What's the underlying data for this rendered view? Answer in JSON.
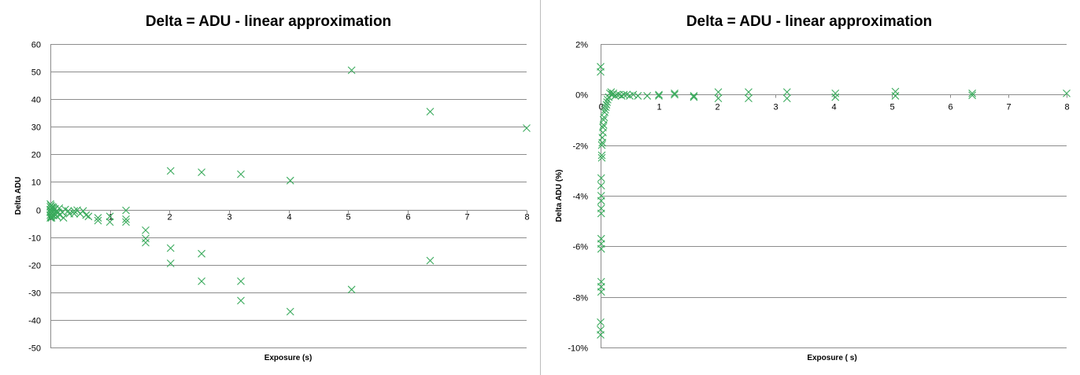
{
  "chart_data": [
    {
      "type": "scatter",
      "title": "Delta = ADU - linear approximation",
      "xlabel": "Exposure (s)",
      "ylabel": "Delta ADU",
      "xlim": [
        0,
        8
      ],
      "ylim": [
        -50,
        60
      ],
      "y_ticks": [
        60,
        50,
        40,
        30,
        20,
        10,
        0,
        -10,
        -20,
        -30,
        -40,
        -50
      ],
      "x_ticks": [
        0,
        1,
        2,
        3,
        4,
        5,
        6,
        7,
        8
      ],
      "x_tick_labels": [
        "0",
        "1",
        "2",
        "3",
        "4",
        "5",
        "6",
        "7",
        "8"
      ],
      "y_tick_labels": [
        "60",
        "50",
        "40",
        "30",
        "20",
        "10",
        "0",
        "-10",
        "-20",
        "-30",
        "-40",
        "-50"
      ],
      "grid": "horizontal",
      "legend": "none",
      "marker": "x",
      "marker_color": "#3aaa5c",
      "points": [
        [
          0.0,
          2.0
        ],
        [
          0.0,
          1.0
        ],
        [
          0.0,
          0.0
        ],
        [
          0.0,
          -1.0
        ],
        [
          0.0,
          -2.0
        ],
        [
          0.0,
          -3.0
        ],
        [
          0.01,
          1.5
        ],
        [
          0.01,
          -0.5
        ],
        [
          0.01,
          -2.5
        ],
        [
          0.02,
          0.5
        ],
        [
          0.02,
          -1.5
        ],
        [
          0.02,
          -3.0
        ],
        [
          0.03,
          1.0
        ],
        [
          0.03,
          -2.0
        ],
        [
          0.04,
          0.0
        ],
        [
          0.04,
          -1.0
        ],
        [
          0.05,
          0.8
        ],
        [
          0.05,
          -2.2
        ],
        [
          0.06,
          -0.3
        ],
        [
          0.07,
          -1.5
        ],
        [
          0.08,
          0.3
        ],
        [
          0.09,
          -2.0
        ],
        [
          0.1,
          -0.8
        ],
        [
          0.11,
          -2.5
        ],
        [
          0.13,
          -1.0
        ],
        [
          0.15,
          0.5
        ],
        [
          0.16,
          -2.0
        ],
        [
          0.2,
          -1.0
        ],
        [
          0.22,
          -3.0
        ],
        [
          0.25,
          0.0
        ],
        [
          0.3,
          -0.5
        ],
        [
          0.32,
          -1.5
        ],
        [
          0.4,
          -0.5
        ],
        [
          0.4,
          -1.5
        ],
        [
          0.45,
          -0.2
        ],
        [
          0.5,
          -1.5
        ],
        [
          0.55,
          -0.5
        ],
        [
          0.6,
          -2.0
        ],
        [
          0.64,
          -2.5
        ],
        [
          0.8,
          -3.0
        ],
        [
          0.8,
          -4.0
        ],
        [
          1.0,
          -2.5
        ],
        [
          1.0,
          -4.5
        ],
        [
          1.27,
          -0.3
        ],
        [
          1.27,
          -3.5
        ],
        [
          1.27,
          -4.5
        ],
        [
          1.6,
          -7.5
        ],
        [
          1.6,
          -10.5
        ],
        [
          1.6,
          -12.0
        ],
        [
          2.02,
          14.0
        ],
        [
          2.02,
          -14.0
        ],
        [
          2.02,
          -19.5
        ],
        [
          2.54,
          13.5
        ],
        [
          2.54,
          -16.0
        ],
        [
          2.54,
          -26.0
        ],
        [
          3.2,
          12.8
        ],
        [
          3.2,
          -26.0
        ],
        [
          3.2,
          -33.0
        ],
        [
          4.03,
          10.5
        ],
        [
          4.03,
          -37.0
        ],
        [
          5.06,
          50.5
        ],
        [
          5.06,
          -29.0
        ],
        [
          6.38,
          35.5
        ],
        [
          6.38,
          -18.5
        ],
        [
          8.0,
          29.5
        ]
      ]
    },
    {
      "type": "scatter",
      "title": "Delta = ADU - linear approximation",
      "xlabel": "Exposure ( s)",
      "ylabel": "Delta ADU (%)",
      "xlim": [
        0,
        8
      ],
      "ylim": [
        -10,
        2
      ],
      "y_ticks": [
        2,
        0,
        -2,
        -4,
        -6,
        -8,
        -10
      ],
      "y_tick_labels": [
        "2%",
        "0%",
        "-2%",
        "-4%",
        "-6%",
        "-8%",
        "-10%"
      ],
      "x_ticks": [
        0,
        1,
        2,
        3,
        4,
        5,
        6,
        7,
        8
      ],
      "x_tick_labels": [
        "0",
        "1",
        "2",
        "3",
        "4",
        "5",
        "6",
        "7",
        "8"
      ],
      "grid": "horizontal",
      "legend": "none",
      "marker": "x",
      "marker_color": "#3aaa5c",
      "points": [
        [
          0.0,
          1.1
        ],
        [
          0.0,
          0.9
        ],
        [
          0.0,
          -9.5
        ],
        [
          0.0,
          -9.3
        ],
        [
          0.0,
          -9.0
        ],
        [
          0.01,
          -7.8
        ],
        [
          0.01,
          -7.6
        ],
        [
          0.01,
          -7.4
        ],
        [
          0.01,
          -6.1
        ],
        [
          0.01,
          -5.9
        ],
        [
          0.01,
          -5.7
        ],
        [
          0.01,
          -4.7
        ],
        [
          0.01,
          -4.5
        ],
        [
          0.01,
          -4.2
        ],
        [
          0.01,
          -4.0
        ],
        [
          0.01,
          -3.6
        ],
        [
          0.01,
          -3.3
        ],
        [
          0.02,
          -2.5
        ],
        [
          0.02,
          -2.4
        ],
        [
          0.02,
          -2.0
        ],
        [
          0.03,
          -1.9
        ],
        [
          0.03,
          -1.7
        ],
        [
          0.04,
          -1.5
        ],
        [
          0.04,
          -1.3
        ],
        [
          0.05,
          -1.2
        ],
        [
          0.05,
          -1.0
        ],
        [
          0.06,
          -0.9
        ],
        [
          0.07,
          -0.7
        ],
        [
          0.08,
          -0.6
        ],
        [
          0.09,
          -0.5
        ],
        [
          0.1,
          -0.4
        ],
        [
          0.11,
          -0.3
        ],
        [
          0.12,
          -0.2
        ],
        [
          0.14,
          -0.1
        ],
        [
          0.16,
          0.05
        ],
        [
          0.18,
          0.1
        ],
        [
          0.2,
          0.0
        ],
        [
          0.22,
          0.05
        ],
        [
          0.25,
          -0.05
        ],
        [
          0.28,
          0.0
        ],
        [
          0.32,
          0.0
        ],
        [
          0.36,
          -0.05
        ],
        [
          0.4,
          0.0
        ],
        [
          0.45,
          0.0
        ],
        [
          0.5,
          -0.05
        ],
        [
          0.56,
          0.0
        ],
        [
          0.64,
          -0.05
        ],
        [
          0.8,
          -0.05
        ],
        [
          1.0,
          0.0
        ],
        [
          1.0,
          -0.05
        ],
        [
          1.27,
          0.0
        ],
        [
          1.27,
          0.05
        ],
        [
          1.6,
          -0.05
        ],
        [
          1.6,
          -0.1
        ],
        [
          2.02,
          0.1
        ],
        [
          2.02,
          -0.15
        ],
        [
          2.54,
          0.1
        ],
        [
          2.54,
          -0.15
        ],
        [
          3.2,
          0.1
        ],
        [
          3.2,
          -0.15
        ],
        [
          4.03,
          0.05
        ],
        [
          4.03,
          -0.1
        ],
        [
          5.06,
          0.12
        ],
        [
          5.06,
          -0.05
        ],
        [
          6.38,
          0.05
        ],
        [
          6.38,
          -0.03
        ],
        [
          8.0,
          0.05
        ]
      ]
    }
  ]
}
